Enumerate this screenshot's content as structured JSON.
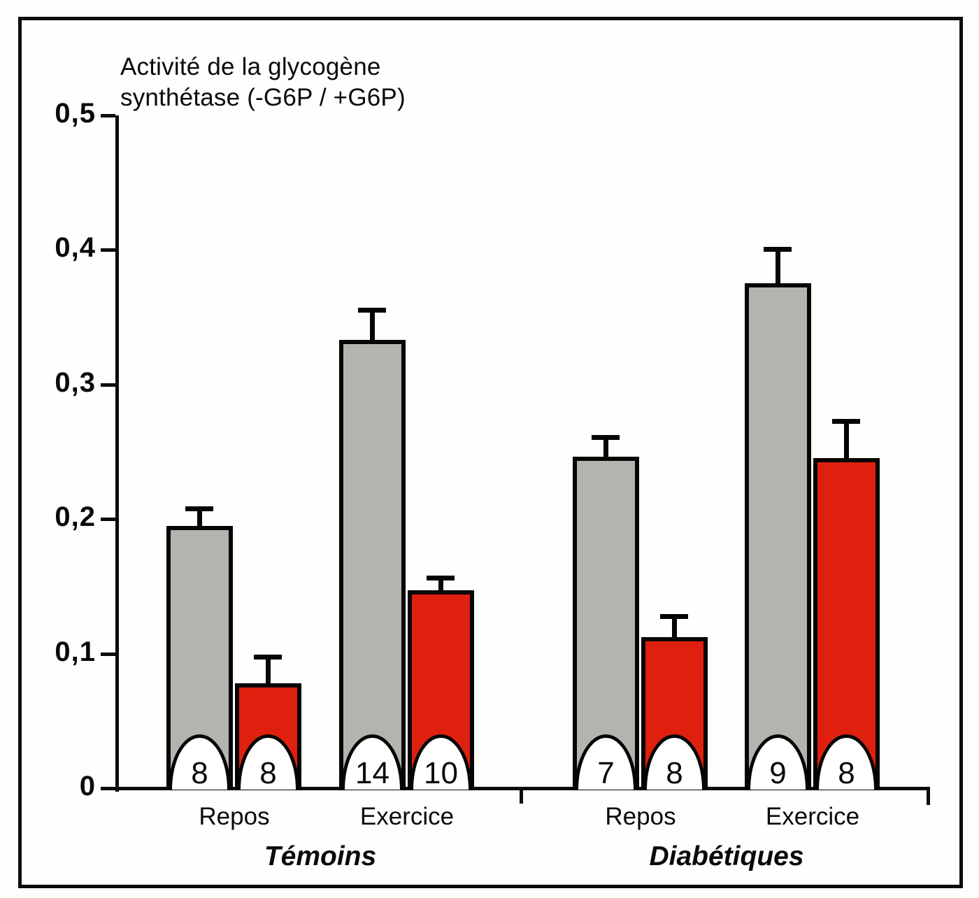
{
  "chart_data": {
    "type": "bar",
    "title": "Activité de la glycogène synthétase (-G6P / +G6P)",
    "title_lines": {
      "line1": "Activité de la glycogène",
      "line2": "synthétase (-G6P / +G6P)"
    },
    "ylabel": "Activité de la glycogène synthétase (-G6P / +G6P)",
    "xlabel": "",
    "ylim": [
      0,
      0.5
    ],
    "grid": false,
    "legend": "none",
    "decimal_separator": ",",
    "yticks": [
      {
        "value": 0,
        "label": "0"
      },
      {
        "value": 0.1,
        "label": "0,1"
      },
      {
        "value": 0.2,
        "label": "0,2"
      },
      {
        "value": 0.3,
        "label": "0,3"
      },
      {
        "value": 0.4,
        "label": "0,4"
      },
      {
        "value": 0.5,
        "label": "0,5"
      }
    ],
    "groups": [
      {
        "label": "Témoins",
        "conditions": [
          "Repos",
          "Exercice"
        ]
      },
      {
        "label": "Diabétiques",
        "conditions": [
          "Repos",
          "Exercice"
        ]
      }
    ],
    "categories": [
      "Témoins Repos",
      "Témoins Exercice",
      "Diabétiques Repos",
      "Diabétiques Exercice"
    ],
    "series": [
      {
        "name": "gray",
        "color": "#b4b3ae",
        "values": [
          0.195,
          0.333,
          0.246,
          0.375
        ],
        "errors_plus": [
          0.011,
          0.021,
          0.013,
          0.024
        ],
        "n": [
          8,
          14,
          7,
          9
        ]
      },
      {
        "name": "red",
        "color": "#df200f",
        "values": [
          0.078,
          0.147,
          0.112,
          0.245
        ],
        "errors_plus": [
          0.018,
          0.008,
          0.014,
          0.026
        ],
        "n": [
          8,
          10,
          8,
          8
        ]
      }
    ],
    "annotations": "n shown in white half-ellipse at base of each bar"
  },
  "figure": {
    "frame_color": "#0c0c0c",
    "background_color": "#fefefd",
    "bar_outline_color": "#050505"
  }
}
